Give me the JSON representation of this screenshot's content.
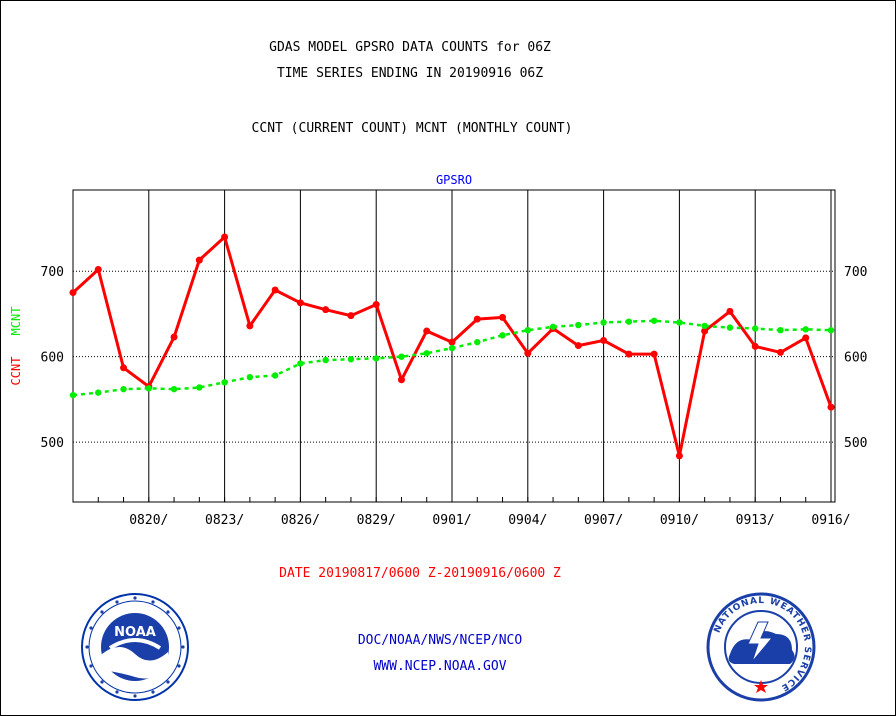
{
  "header": {
    "title_line1": "GDAS MODEL GPSRO DATA COUNTS for 06Z",
    "title_line2": "TIME SERIES ENDING IN 20190916 06Z",
    "subtitle": "CCNT (CURRENT COUNT) MCNT (MONTHLY COUNT)"
  },
  "footer": {
    "date_range": "DATE 20190817/0600 Z-20190916/0600 Z",
    "org_line": "DOC/NOAA/NWS/NCEP/NCO",
    "url_line": "WWW.NCEP.NOAA.GOV"
  },
  "logos": {
    "noaa_label": "NOAA",
    "nws_ring_text": "NATIONAL WEATHER SERVICE"
  },
  "colors": {
    "ccnt": "#ff0000",
    "mcnt": "#00ee00",
    "panel_title": "#0000ff",
    "footer_link": "#0000cc"
  },
  "chart_data": {
    "type": "line",
    "title": "GPSRO",
    "ylabel_left_red": "CCNT",
    "ylabel_left_green": "MCNT",
    "yticks": [
      "500",
      "600",
      "700"
    ],
    "ylim": [
      430,
      795
    ],
    "xtick_labels": [
      "0820/",
      "0823/",
      "0826/",
      "0829/",
      "0901/",
      "0904/",
      "0907/",
      "0910/",
      "0913/",
      "0916/"
    ],
    "grid": "vertical lines at each tick date, horizontal dotted lines at 500/600/700",
    "x": [
      "08/17",
      "08/18",
      "08/19",
      "08/20",
      "08/21",
      "08/22",
      "08/23",
      "08/24",
      "08/25",
      "08/26",
      "08/27",
      "08/28",
      "08/29",
      "08/30",
      "08/31",
      "09/01",
      "09/02",
      "09/03",
      "09/04",
      "09/05",
      "09/06",
      "09/07",
      "09/08",
      "09/09",
      "09/10",
      "09/11",
      "09/12",
      "09/13",
      "09/14",
      "09/15",
      "09/16"
    ],
    "series": [
      {
        "name": "CCNT",
        "color": "#ff0000",
        "values": [
          675,
          702,
          587,
          565,
          623,
          713,
          740,
          636,
          678,
          663,
          655,
          648,
          661,
          573,
          630,
          617,
          644,
          646,
          604,
          633,
          613,
          619,
          603,
          603,
          484,
          630,
          653,
          612,
          605,
          622,
          541
        ]
      },
      {
        "name": "MCNT",
        "color": "#00ee00",
        "values": [
          555,
          558,
          562,
          563,
          562,
          564,
          570,
          576,
          578,
          592,
          596,
          597,
          598,
          600,
          604,
          610,
          617,
          625,
          631,
          635,
          637,
          640,
          641,
          642,
          640,
          636,
          634,
          633,
          631,
          632,
          631
        ]
      }
    ]
  }
}
